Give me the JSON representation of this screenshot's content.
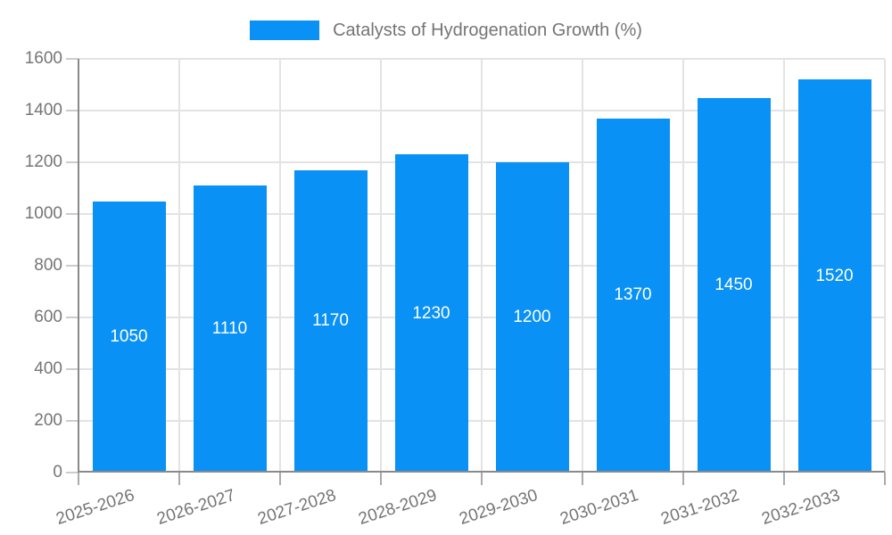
{
  "legend": {
    "label": "Catalysts of Hydrogenation Growth (%)"
  },
  "chart_data": {
    "type": "bar",
    "title": "Catalysts of Hydrogenation Growth (%)",
    "categories": [
      "2025-2026",
      "2026-2027",
      "2027-2028",
      "2028-2029",
      "2029-2030",
      "2030-2031",
      "2031-2032",
      "2032-2033"
    ],
    "values": [
      1050,
      1110,
      1170,
      1230,
      1200,
      1370,
      1450,
      1520
    ],
    "value_labels_shown": true,
    "xlabel": "",
    "ylabel": "",
    "ylim": [
      0,
      1600
    ],
    "yticks": [
      0,
      200,
      400,
      600,
      800,
      1000,
      1200,
      1400,
      1600
    ],
    "grid": true,
    "legend_position": "top-center",
    "x_label_rotation_deg": -18,
    "colors": {
      "bar": "#0991f5",
      "bar_value_text": "#ffffff",
      "axis_text": "#757575",
      "legend_text": "#757575",
      "gridline": "#e3e3e3",
      "axis_line": "#8a8a8a",
      "tick": "#aaaaaa",
      "background": "#ffffff"
    }
  }
}
